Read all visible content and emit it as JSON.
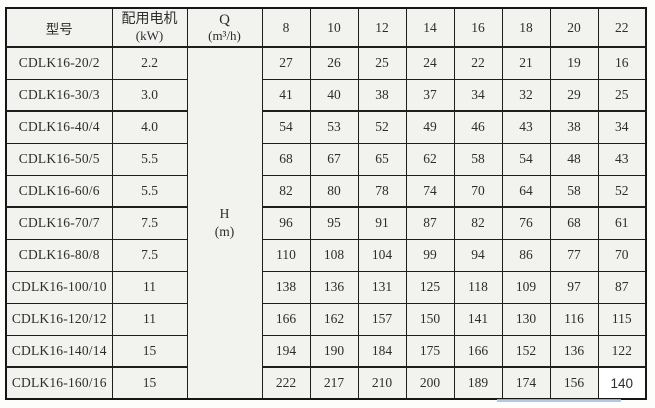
{
  "page": {
    "paper_color": "#f2f2ef",
    "border_color": "#1e1e1e",
    "patched_cell_color": "#ffffff",
    "artifact_color": "#a9bde5"
  },
  "table": {
    "headers": {
      "model": "型号",
      "motor_line1": "配用电机",
      "motor_line2": "(kW)",
      "q_line1": "Q",
      "q_line2": "(m³/h)",
      "flow_values": [
        "8",
        "10",
        "12",
        "14",
        "16",
        "18",
        "20",
        "22"
      ]
    },
    "head_unit_line1": "H",
    "head_unit_line2": "(m)",
    "rows": [
      {
        "model": "CDLK16-20/2",
        "power": "2.2",
        "heads": [
          "27",
          "26",
          "25",
          "24",
          "22",
          "21",
          "19",
          "16"
        ]
      },
      {
        "model": "CDLK16-30/3",
        "power": "3.0",
        "heads": [
          "41",
          "40",
          "38",
          "37",
          "34",
          "32",
          "29",
          "25"
        ]
      },
      {
        "model": "CDLK16-40/4",
        "power": "4.0",
        "heads": [
          "54",
          "53",
          "52",
          "49",
          "46",
          "43",
          "38",
          "34"
        ]
      },
      {
        "model": "CDLK16-50/5",
        "power": "5.5",
        "heads": [
          "68",
          "67",
          "65",
          "62",
          "58",
          "54",
          "48",
          "43"
        ]
      },
      {
        "model": "CDLK16-60/6",
        "power": "5.5",
        "heads": [
          "82",
          "80",
          "78",
          "74",
          "70",
          "64",
          "58",
          "52"
        ]
      },
      {
        "model": "CDLK16-70/7",
        "power": "7.5",
        "heads": [
          "96",
          "95",
          "91",
          "87",
          "82",
          "76",
          "68",
          "61"
        ]
      },
      {
        "model": "CDLK16-80/8",
        "power": "7.5",
        "heads": [
          "110",
          "108",
          "104",
          "99",
          "94",
          "86",
          "77",
          "70"
        ]
      },
      {
        "model": "CDLK16-100/10",
        "power": "11",
        "heads": [
          "138",
          "136",
          "131",
          "125",
          "118",
          "109",
          "97",
          "87"
        ]
      },
      {
        "model": "CDLK16-120/12",
        "power": "11",
        "heads": [
          "166",
          "162",
          "157",
          "150",
          "141",
          "130",
          "116",
          "115"
        ]
      },
      {
        "model": "CDLK16-140/14",
        "power": "15",
        "heads": [
          "194",
          "190",
          "184",
          "175",
          "166",
          "152",
          "136",
          "122"
        ]
      },
      {
        "model": "CDLK16-160/16",
        "power": "15",
        "heads": [
          "222",
          "217",
          "210",
          "200",
          "189",
          "174",
          "156",
          "140"
        ]
      }
    ]
  }
}
